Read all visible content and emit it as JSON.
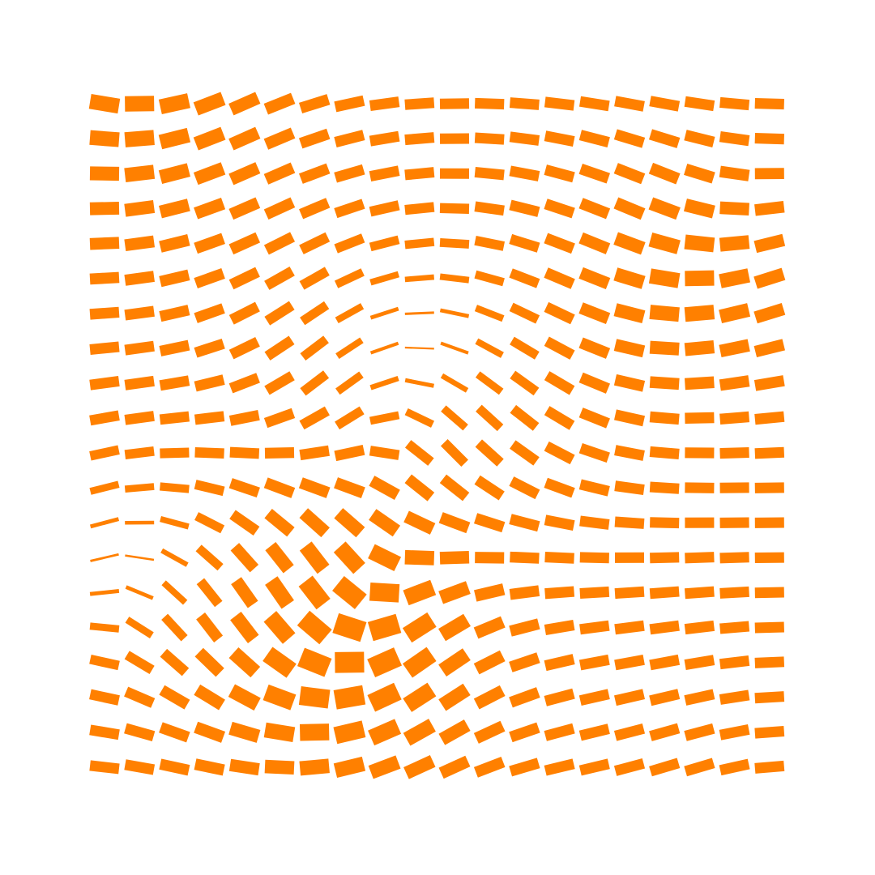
{
  "artwork": {
    "kind": "dash-field-pattern",
    "shape": "rectangular-dash",
    "background_color": "#ffffff",
    "dash_color": "#ff8000",
    "grid": {
      "columns": 20,
      "rows": 20
    },
    "description_source": "none"
  }
}
